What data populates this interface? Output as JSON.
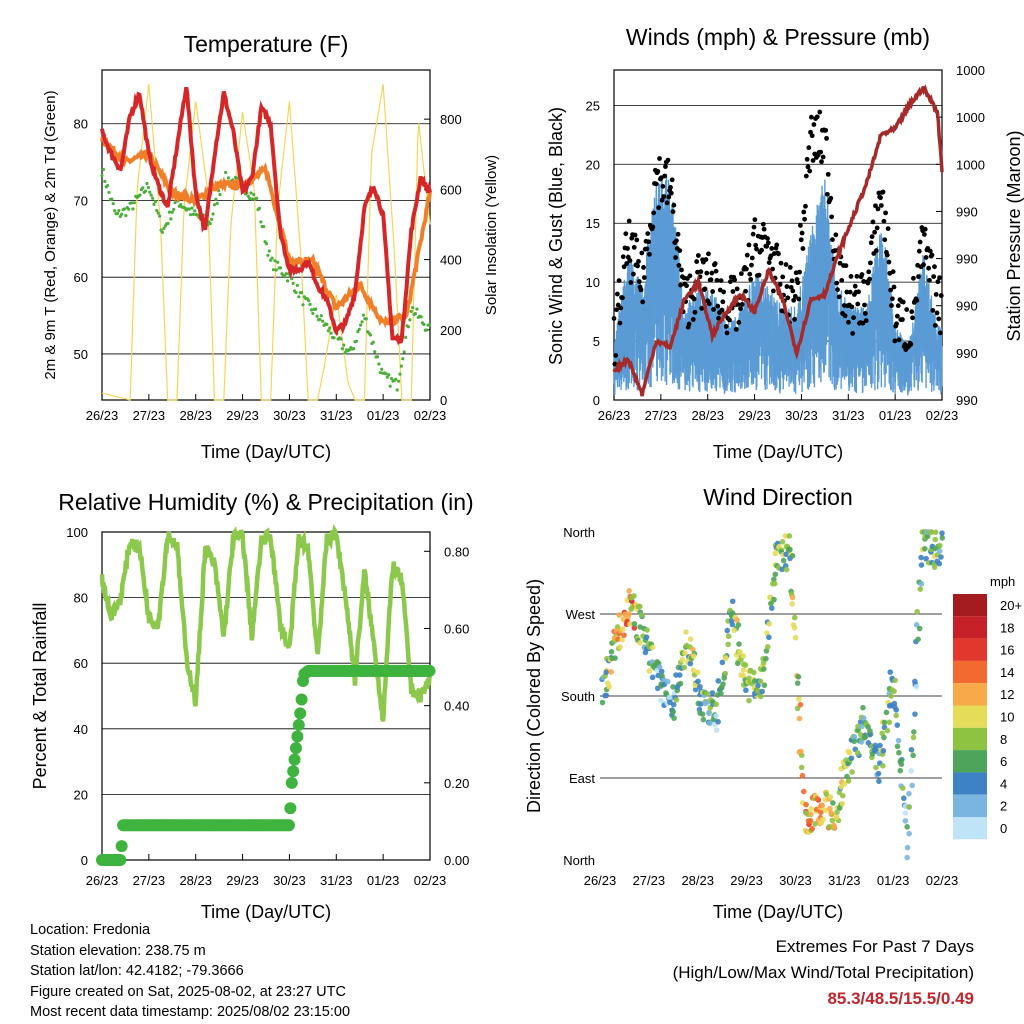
{
  "time_ticks": [
    "26/23",
    "27/23",
    "28/23",
    "29/23",
    "30/23",
    "31/23",
    "01/23",
    "02/23"
  ],
  "time_axis_label": "Time (Day/UTC)",
  "panels": {
    "temperature": {
      "title": "Temperature (F)",
      "ylabel_left": "2m & 9m T (Red, Orange) & 2m Td (Green)",
      "ylabel_right": "Solar Insolation (Yellow)"
    },
    "winds": {
      "title": "Winds (mph) & Pressure (mb)",
      "ylabel_left": "Sonic Wind & Gust (Blue, Black)",
      "ylabel_right": "Station Pressure (Maroon)"
    },
    "humidity": {
      "title": "Relative Humidity (%) & Precipitation (in)",
      "ylabel_left": "Percent & Total Rainfall"
    },
    "direction": {
      "title": "Wind Direction",
      "ylabel_left": "Direction (Colored By Speed)",
      "colorbar_title": "mph"
    }
  },
  "chart_data": [
    {
      "type": "line",
      "title": "Temperature (F)",
      "xlabel": "Time (Day/UTC)",
      "ylabel": "2m & 9m T (Red, Orange) & 2m Td (Green)",
      "y2label": "Solar Insolation (Yellow)",
      "categories": [
        "26/23",
        "27/23",
        "28/23",
        "29/23",
        "30/23",
        "31/23",
        "01/23",
        "02/23"
      ],
      "ylim": [
        44,
        87
      ],
      "y2lim": [
        0,
        940
      ],
      "yticks": [
        50,
        60,
        70,
        80
      ],
      "y2ticks": [
        0,
        200,
        400,
        600,
        800
      ],
      "series": [
        {
          "name": "2m T",
          "color": "#d62728",
          "x": [
            0,
            0.2,
            0.4,
            0.6,
            0.8,
            1.0,
            1.2,
            1.4,
            1.6,
            1.8,
            2.0,
            2.2,
            2.4,
            2.6,
            2.8,
            3.0,
            3.2,
            3.4,
            3.6,
            3.8,
            4.0,
            4.2,
            4.4,
            4.6,
            4.8,
            5.0,
            5.2,
            5.4,
            5.6,
            5.8,
            6.0,
            6.2,
            6.4,
            6.6,
            6.8,
            7.0
          ],
          "values": [
            79,
            76,
            74,
            81,
            84,
            76,
            72,
            69,
            77,
            85,
            71,
            66,
            76,
            84,
            79,
            71,
            73,
            82,
            80,
            66,
            61,
            61,
            62,
            59,
            57,
            53,
            54,
            58,
            69,
            72,
            68,
            52,
            52,
            66,
            73,
            71
          ]
        },
        {
          "name": "9m T",
          "color": "#f07f2a",
          "x": [
            0,
            0.5,
            1.0,
            1.5,
            2.0,
            2.5,
            3.0,
            3.5,
            4.0,
            4.5,
            5.0,
            5.5,
            6.0,
            6.5,
            7.0
          ],
          "values": [
            78,
            75,
            76,
            71,
            70,
            72,
            72,
            74,
            62,
            62,
            56,
            59,
            54,
            55,
            71
          ]
        },
        {
          "name": "2m Td",
          "color": "#4caf39",
          "x": [
            0,
            0.3,
            0.6,
            1.0,
            1.3,
            1.6,
            2.0,
            2.3,
            2.6,
            3.0,
            3.3,
            3.6,
            4.0,
            4.3,
            4.6,
            5.0,
            5.3,
            5.6,
            6.0,
            6.3,
            6.6,
            7.0
          ],
          "values": [
            74,
            68,
            69,
            72,
            66,
            70,
            68,
            67,
            73,
            72,
            70,
            62,
            60,
            57,
            55,
            52,
            50,
            55,
            47,
            46,
            56,
            53
          ]
        },
        {
          "name": "Solar Insolation",
          "axis": "right",
          "color": "#f2d65a",
          "x": [
            0,
            0.6,
            0.75,
            1.0,
            1.25,
            1.4,
            1.6,
            1.75,
            2.0,
            2.25,
            2.4,
            2.6,
            2.75,
            3.0,
            3.25,
            3.4,
            3.6,
            3.75,
            4.0,
            4.25,
            4.4,
            4.6,
            4.75,
            5.0,
            5.25,
            5.4,
            5.6,
            5.75,
            6.0,
            6.25,
            6.4,
            6.6,
            6.75,
            7.0
          ],
          "values": [
            20,
            0,
            600,
            900,
            500,
            0,
            0,
            550,
            850,
            600,
            0,
            0,
            500,
            820,
            600,
            0,
            0,
            550,
            850,
            400,
            0,
            0,
            100,
            300,
            50,
            0,
            0,
            700,
            900,
            400,
            0,
            0,
            800,
            500
          ]
        }
      ]
    },
    {
      "type": "scatter",
      "title": "Winds (mph) & Pressure (mb)",
      "xlabel": "Time (Day/UTC)",
      "ylabel": "Sonic Wind & Gust (Blue, Black)",
      "y2label": "Station Pressure (Maroon)",
      "categories": [
        "26/23",
        "27/23",
        "28/23",
        "29/23",
        "30/23",
        "31/23",
        "01/23",
        "02/23"
      ],
      "ylim": [
        0,
        28
      ],
      "yticks": [
        0,
        5,
        10,
        15,
        20,
        25
      ],
      "y2ticks": [
        "990",
        "990",
        "990",
        "990",
        "990",
        "1000",
        "1000",
        "1000"
      ],
      "series": [
        {
          "name": "Sonic Wind",
          "color": "#5b9bd5",
          "x": [
            0,
            0.3,
            0.6,
            0.9,
            1.2,
            1.5,
            1.8,
            2.1,
            2.4,
            2.7,
            3.0,
            3.3,
            3.6,
            3.9,
            4.2,
            4.5,
            4.8,
            5.1,
            5.4,
            5.7,
            6.0,
            6.3,
            6.6,
            6.9
          ],
          "values": [
            3,
            8,
            6,
            12,
            12,
            5,
            6,
            6,
            4,
            5,
            7,
            6,
            5,
            5,
            9,
            12,
            6,
            5,
            5,
            10,
            4,
            3,
            8,
            4
          ]
        },
        {
          "name": "Gust",
          "color": "#000000",
          "x": [
            0,
            0.3,
            0.6,
            0.9,
            1.2,
            1.5,
            1.8,
            2.1,
            2.4,
            2.7,
            3.0,
            3.3,
            3.6,
            3.9,
            4.2,
            4.5,
            4.8,
            5.1,
            5.4,
            5.7,
            6.0,
            6.3,
            6.6,
            6.9
          ],
          "values": [
            5,
            13,
            10,
            19,
            18,
            8,
            10,
            10,
            8,
            8,
            13,
            13,
            9,
            9,
            22,
            22,
            10,
            8,
            9,
            18,
            7,
            6,
            13,
            8
          ]
        },
        {
          "name": "Station Pressure",
          "axis": "right",
          "color": "#a52a2a",
          "x": [
            0,
            0.3,
            0.6,
            0.9,
            1.2,
            1.5,
            1.8,
            2.1,
            2.4,
            2.7,
            3.0,
            3.3,
            3.6,
            3.9,
            4.2,
            4.5,
            4.8,
            5.1,
            5.4,
            5.7,
            6.0,
            6.3,
            6.6,
            6.9,
            7.0
          ],
          "values_scaled": [
            2.5,
            3.5,
            0.5,
            5,
            4.5,
            8.5,
            10,
            5.5,
            7.5,
            9,
            7.5,
            11,
            8.5,
            4,
            8.5,
            9,
            12.5,
            15.5,
            18.5,
            22.5,
            23,
            25,
            26.5,
            24.5,
            19.5
          ]
        }
      ]
    },
    {
      "type": "line",
      "title": "Relative Humidity (%) & Precipitation (in)",
      "xlabel": "Time (Day/UTC)",
      "ylabel": "Percent & Total Rainfall",
      "categories": [
        "26/23",
        "27/23",
        "28/23",
        "29/23",
        "30/23",
        "31/23",
        "01/23",
        "02/23"
      ],
      "ylim": [
        0,
        100
      ],
      "y2lim": [
        0,
        0.85
      ],
      "yticks": [
        0,
        20,
        40,
        60,
        80,
        100
      ],
      "y2ticks": [
        "0.00",
        "0.20",
        "0.40",
        "0.60",
        "0.80"
      ],
      "series": [
        {
          "name": "Relative Humidity",
          "color": "#8cc84b",
          "x": [
            0,
            0.2,
            0.4,
            0.6,
            0.8,
            1.0,
            1.2,
            1.4,
            1.6,
            1.8,
            2.0,
            2.2,
            2.4,
            2.6,
            2.8,
            3.0,
            3.2,
            3.4,
            3.6,
            3.8,
            4.0,
            4.2,
            4.4,
            4.6,
            4.8,
            5.0,
            5.2,
            5.4,
            5.6,
            5.8,
            6.0,
            6.2,
            6.4,
            6.6,
            6.8,
            7.0
          ],
          "values": [
            86,
            74,
            80,
            97,
            95,
            74,
            72,
            99,
            96,
            62,
            48,
            95,
            90,
            68,
            98,
            99,
            68,
            97,
            99,
            72,
            64,
            98,
            95,
            62,
            98,
            99,
            80,
            55,
            88,
            66,
            43,
            90,
            85,
            52,
            50,
            55
          ]
        },
        {
          "name": "Total Rainfall",
          "axis": "right",
          "color": "#3fb33f",
          "x": [
            0,
            0.4,
            0.45,
            0.6,
            1.0,
            2.0,
            3.0,
            4.0,
            4.05,
            4.15,
            4.25,
            4.3,
            4.4,
            5.0,
            6.0,
            7.0
          ],
          "values": [
            0.0,
            0.0,
            0.09,
            0.09,
            0.09,
            0.09,
            0.09,
            0.09,
            0.2,
            0.3,
            0.4,
            0.48,
            0.49,
            0.49,
            0.49,
            0.49
          ]
        }
      ]
    },
    {
      "type": "scatter",
      "title": "Wind Direction",
      "xlabel": "Time (Day/UTC)",
      "ylabel": "Direction (Colored By Speed)",
      "categories": [
        "26/23",
        "27/23",
        "28/23",
        "29/23",
        "30/23",
        "31/23",
        "01/23",
        "02/23"
      ],
      "yticks": [
        "North",
        "East",
        "South",
        "West",
        "North"
      ],
      "colorbar": {
        "title": "mph",
        "labels": [
          "20+",
          "18",
          "16",
          "14",
          "12",
          "10",
          "8",
          "6",
          "4",
          "2",
          "0"
        ],
        "colors": [
          "#a51c20",
          "#c62128",
          "#e1382e",
          "#f26a30",
          "#f8a94a",
          "#e5dd5a",
          "#8ec341",
          "#4ea55a",
          "#3d82c4",
          "#7ab5e0",
          "#bfe3f7"
        ]
      },
      "series": [
        {
          "name": "Direction",
          "x": [
            0.1,
            0.3,
            0.6,
            0.8,
            1.2,
            1.5,
            1.8,
            2.1,
            2.4,
            2.7,
            3.0,
            3.3,
            3.6,
            3.9,
            4.2,
            4.5,
            4.8,
            5.1,
            5.4,
            5.7,
            6.0,
            6.3,
            6.6,
            6.9
          ],
          "values_deg": [
            190,
            230,
            280,
            260,
            200,
            170,
            240,
            170,
            160,
            270,
            190,
            190,
            330,
            340,
            40,
            60,
            50,
            110,
            150,
            100,
            200,
            20,
            350,
            340
          ],
          "speed": [
            6,
            10,
            14,
            8,
            4,
            4,
            8,
            6,
            4,
            8,
            7,
            6,
            6,
            8,
            12,
            12,
            10,
            6,
            5,
            6,
            5,
            3,
            6,
            6
          ]
        }
      ]
    }
  ],
  "station_info": {
    "location": "Location: Fredonia",
    "elevation": "Station elevation: 238.75 m",
    "latlon": "Station lat/lon: 42.4182; -79.3666",
    "created": "Figure created on Sat, 2025-08-02, at 23:27 UTC",
    "latest": "Most recent data timestamp: 2025/08/02 23:15:00"
  },
  "extremes": {
    "label1": "Extremes For Past 7 Days",
    "label2": "(High/Low/Max Wind/Total Precipitation)",
    "values": "85.3/48.5/15.5/0.49"
  }
}
